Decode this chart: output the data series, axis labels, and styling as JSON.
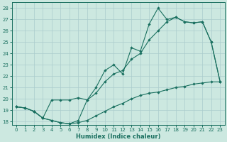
{
  "xlabel": "Humidex (Indice chaleur)",
  "ylabel_ticks": [
    18,
    19,
    20,
    21,
    22,
    23,
    24,
    25,
    26,
    27,
    28
  ],
  "xlim": [
    -0.5,
    23.5
  ],
  "ylim": [
    17.7,
    28.5
  ],
  "xticks": [
    0,
    1,
    2,
    3,
    4,
    5,
    6,
    7,
    8,
    9,
    10,
    11,
    12,
    13,
    14,
    15,
    16,
    17,
    18,
    19,
    20,
    21,
    22,
    23
  ],
  "bg_color": "#cce8e0",
  "grid_color": "#aacccc",
  "line_color": "#1a7060",
  "line1_x": [
    0,
    1,
    2,
    3,
    4,
    5,
    6,
    7,
    8,
    9,
    10,
    11,
    12,
    13,
    14,
    15,
    16,
    17,
    18,
    19,
    20,
    21,
    22,
    23
  ],
  "line1_y": [
    19.3,
    19.2,
    18.9,
    18.3,
    19.9,
    19.9,
    19.9,
    20.1,
    19.9,
    21.0,
    22.5,
    23.0,
    22.2,
    24.5,
    24.2,
    26.6,
    28.0,
    27.0,
    27.2,
    26.8,
    26.7,
    26.8,
    25.0,
    21.5
  ],
  "line2_x": [
    0,
    1,
    2,
    3,
    4,
    5,
    6,
    7,
    8,
    9,
    10,
    11,
    12,
    13,
    14,
    15,
    16,
    17,
    18,
    19,
    20,
    21,
    22,
    23
  ],
  "line2_y": [
    19.3,
    19.2,
    18.9,
    18.3,
    18.1,
    17.9,
    17.8,
    18.1,
    19.9,
    20.5,
    21.5,
    22.2,
    22.5,
    23.5,
    24.0,
    25.2,
    26.0,
    26.8,
    27.2,
    26.8,
    26.7,
    26.8,
    25.0,
    21.5
  ],
  "line3_x": [
    0,
    1,
    2,
    3,
    4,
    5,
    6,
    7,
    8,
    9,
    10,
    11,
    12,
    13,
    14,
    15,
    16,
    17,
    18,
    19,
    20,
    21,
    22,
    23
  ],
  "line3_y": [
    19.3,
    19.2,
    18.9,
    18.3,
    18.1,
    17.9,
    17.8,
    17.9,
    18.1,
    18.5,
    18.9,
    19.3,
    19.6,
    20.0,
    20.3,
    20.5,
    20.6,
    20.8,
    21.0,
    21.1,
    21.3,
    21.4,
    21.5,
    21.5
  ]
}
